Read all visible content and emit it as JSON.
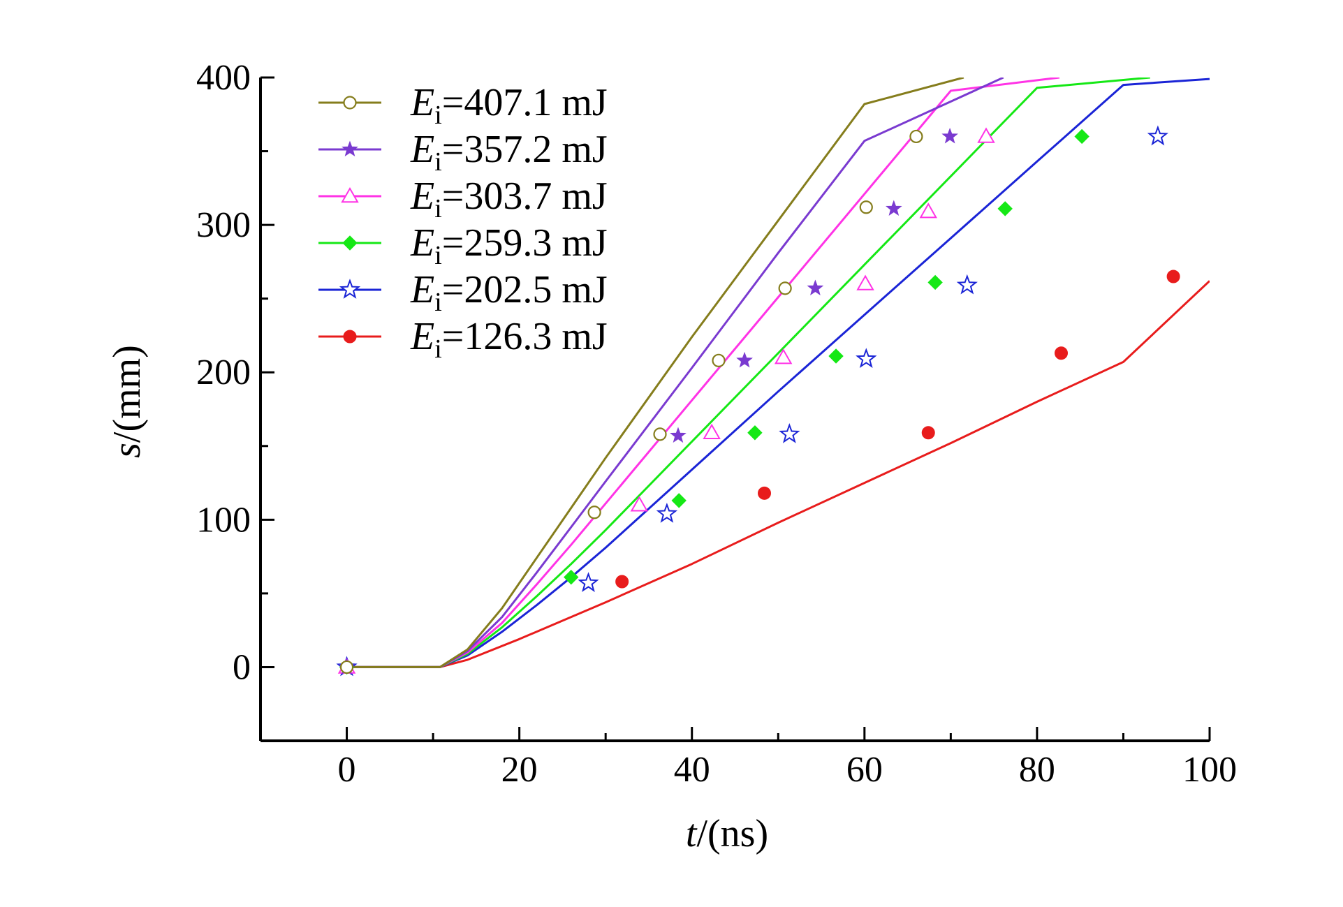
{
  "chart_data": {
    "type": "line",
    "xlabel": {
      "symbol": "t",
      "unit": "/(ns)"
    },
    "ylabel": {
      "symbol": "s",
      "unit": "/(mm)"
    },
    "xlim": [
      -10,
      100
    ],
    "ylim": [
      -50,
      400
    ],
    "xticks": [
      0,
      20,
      40,
      60,
      80,
      100
    ],
    "yticks": [
      0,
      100,
      200,
      300,
      400
    ],
    "x_minor_step": 10,
    "y_minor_step": 50,
    "grid": false,
    "legend_placement": "top-left",
    "series": [
      {
        "name": "407.1 mJ",
        "symbol": "E",
        "subscript": "i",
        "marker": "circle-open",
        "color": "#857d1c",
        "points": [
          [
            0,
            0
          ],
          [
            28.7,
            105
          ],
          [
            36.3,
            158
          ],
          [
            43.1,
            208
          ],
          [
            50.8,
            257
          ],
          [
            60.2,
            312
          ],
          [
            66.0,
            360
          ]
        ],
        "fit": [
          [
            0,
            0
          ],
          [
            10.8,
            0
          ],
          [
            14,
            12
          ],
          [
            18,
            40
          ],
          [
            22,
            74
          ],
          [
            26,
            108
          ],
          [
            30,
            142
          ],
          [
            40,
            224
          ],
          [
            50,
            303
          ],
          [
            60,
            382
          ],
          [
            71.5,
            400
          ]
        ]
      },
      {
        "name": "357.2 mJ",
        "symbol": "E",
        "subscript": "i",
        "marker": "star-filled",
        "color": "#7a3ad0",
        "points": [
          [
            0,
            0
          ],
          [
            38.4,
            157
          ],
          [
            46.1,
            208
          ],
          [
            54.3,
            257
          ],
          [
            63.4,
            311
          ],
          [
            69.9,
            360
          ]
        ],
        "fit": [
          [
            0,
            0
          ],
          [
            10.8,
            0
          ],
          [
            14,
            11
          ],
          [
            18,
            34
          ],
          [
            22,
            64
          ],
          [
            26,
            95
          ],
          [
            30,
            126
          ],
          [
            40,
            203
          ],
          [
            50,
            281
          ],
          [
            60,
            357
          ],
          [
            76.1,
            400
          ]
        ]
      },
      {
        "name": "303.7 mJ",
        "symbol": "E",
        "subscript": "i",
        "marker": "triangle-open",
        "color": "#ff33e6",
        "points": [
          [
            0,
            0
          ],
          [
            33.9,
            110
          ],
          [
            42.3,
            159
          ],
          [
            50.6,
            210
          ],
          [
            60.1,
            260
          ],
          [
            67.4,
            309
          ],
          [
            74.1,
            360
          ]
        ],
        "fit": [
          [
            0,
            0
          ],
          [
            10.8,
            0
          ],
          [
            14,
            10
          ],
          [
            18,
            30
          ],
          [
            22,
            56
          ],
          [
            26,
            83
          ],
          [
            30,
            111
          ],
          [
            40,
            181
          ],
          [
            50,
            251
          ],
          [
            60,
            321
          ],
          [
            70,
            391
          ],
          [
            82.6,
            400
          ]
        ]
      },
      {
        "name": "259.3 mJ",
        "symbol": "E",
        "subscript": "i",
        "marker": "diamond-filled",
        "color": "#15e815",
        "points": [
          [
            0,
            0
          ],
          [
            26.0,
            61
          ],
          [
            38.5,
            113
          ],
          [
            47.3,
            159
          ],
          [
            56.7,
            211
          ],
          [
            68.2,
            261
          ],
          [
            76.3,
            311
          ],
          [
            85.2,
            360
          ]
        ],
        "fit": [
          [
            0,
            0
          ],
          [
            10.8,
            0
          ],
          [
            14,
            9
          ],
          [
            18,
            27
          ],
          [
            22,
            48
          ],
          [
            26,
            70
          ],
          [
            30,
            93
          ],
          [
            40,
            153
          ],
          [
            50,
            213
          ],
          [
            60,
            273
          ],
          [
            70,
            333
          ],
          [
            80,
            393
          ],
          [
            93.1,
            400
          ]
        ]
      },
      {
        "name": "202.5 mJ",
        "symbol": "E",
        "subscript": "i",
        "marker": "star-open",
        "color": "#1a24d6",
        "points": [
          [
            0,
            0
          ],
          [
            28.0,
            57
          ],
          [
            37.1,
            104
          ],
          [
            51.3,
            158
          ],
          [
            60.2,
            209
          ],
          [
            71.9,
            259
          ],
          [
            94.0,
            360
          ]
        ],
        "fit": [
          [
            0,
            0
          ],
          [
            10.8,
            0
          ],
          [
            14,
            8
          ],
          [
            18,
            24
          ],
          [
            22,
            42
          ],
          [
            26,
            61
          ],
          [
            30,
            81
          ],
          [
            40,
            134
          ],
          [
            50,
            187
          ],
          [
            60,
            239
          ],
          [
            70,
            291
          ],
          [
            80,
            343
          ],
          [
            90,
            395
          ],
          [
            100,
            399
          ]
        ]
      },
      {
        "name": "126.3 mJ",
        "symbol": "E",
        "subscript": "i",
        "marker": "circle-filled",
        "color": "#e81c1c",
        "points": [
          [
            0,
            0
          ],
          [
            31.9,
            58
          ],
          [
            48.4,
            118
          ],
          [
            67.4,
            159
          ],
          [
            82.8,
            213
          ],
          [
            95.8,
            265
          ]
        ],
        "fit": [
          [
            0,
            0
          ],
          [
            10.8,
            0
          ],
          [
            14,
            5
          ],
          [
            20,
            19
          ],
          [
            30,
            44
          ],
          [
            40,
            70
          ],
          [
            50,
            98
          ],
          [
            60,
            125
          ],
          [
            70,
            152
          ],
          [
            80,
            180
          ],
          [
            90,
            207
          ],
          [
            100,
            262
          ]
        ]
      }
    ]
  }
}
